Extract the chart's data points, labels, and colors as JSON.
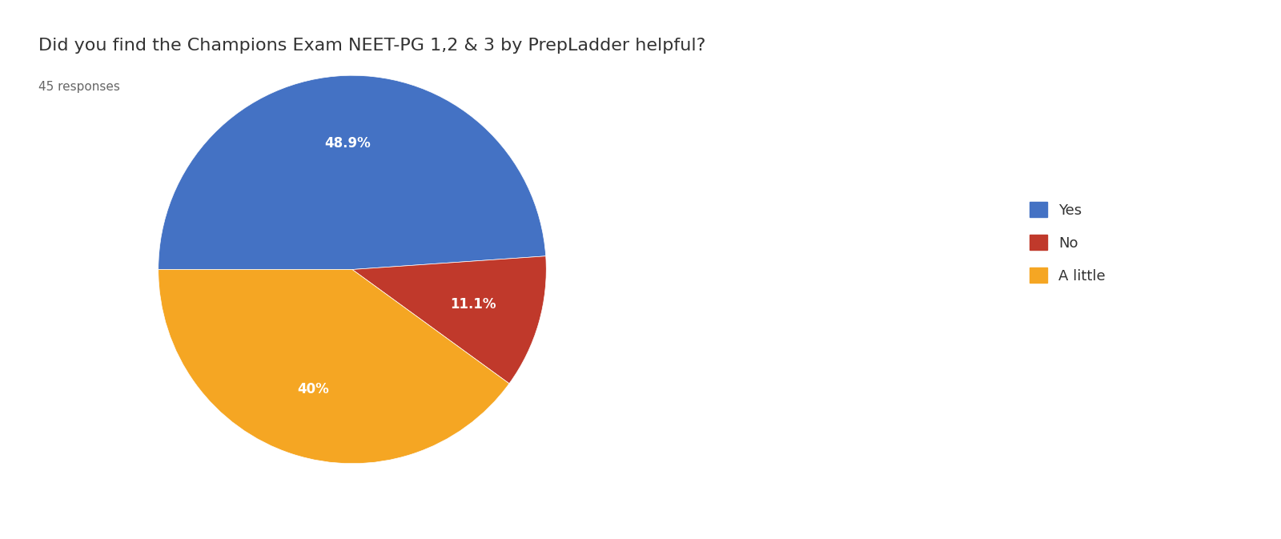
{
  "title": "Did you find the Champions Exam NEET-PG 1,2 & 3 by PrepLadder helpful?",
  "subtitle": "45 responses",
  "labels": [
    "Yes",
    "No",
    "A little"
  ],
  "values": [
    48.9,
    11.1,
    40.0
  ],
  "colors": [
    "#4472C4",
    "#C0392B",
    "#F5A623"
  ],
  "pct_labels": [
    "48.9%",
    "11.1%",
    "40%"
  ],
  "background_color": "#ffffff",
  "title_fontsize": 16,
  "subtitle_fontsize": 11,
  "legend_fontsize": 13
}
